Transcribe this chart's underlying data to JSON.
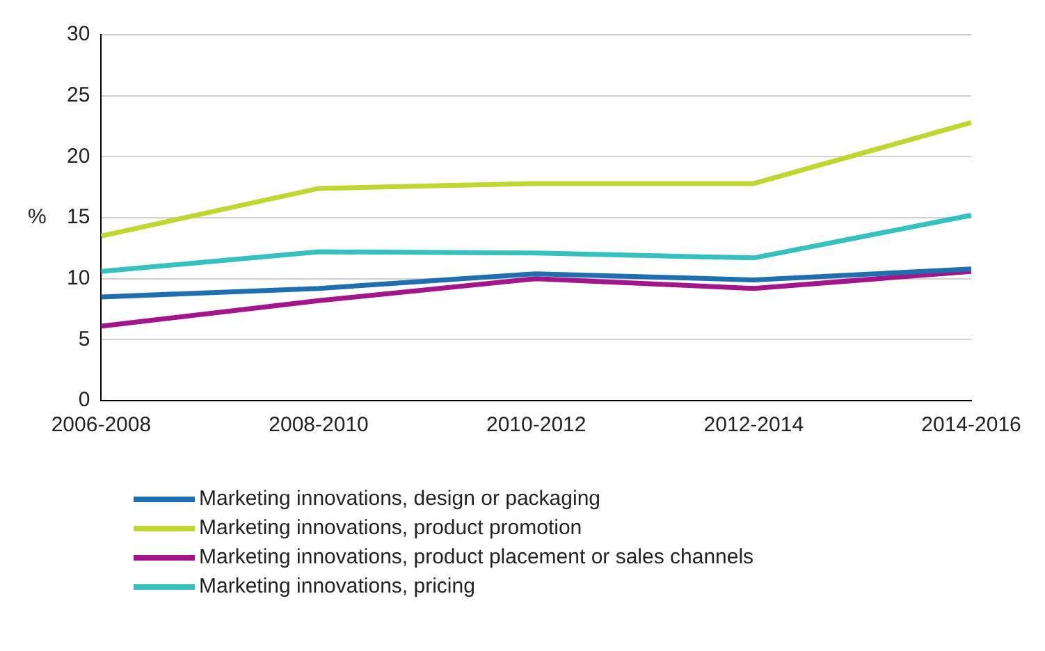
{
  "chart_data": {
    "type": "line",
    "ylabel": "%",
    "categories": [
      "2006-2008",
      "2008-2010",
      "2010-2012",
      "2012-2014",
      "2014-2016"
    ],
    "series": [
      {
        "name": "Marketing innovations, design or packaging",
        "color": "#1f6fb0",
        "values": [
          8.5,
          9.2,
          10.4,
          9.9,
          10.8
        ]
      },
      {
        "name": "Marketing innovations, product promotion",
        "color": "#bfd730",
        "values": [
          13.5,
          17.4,
          17.8,
          17.8,
          22.8
        ]
      },
      {
        "name": "Marketing innovations, product placement or sales channels",
        "color": "#a3168b",
        "values": [
          6.1,
          8.2,
          10.0,
          9.2,
          10.6
        ]
      },
      {
        "name": "Marketing innovations, pricing",
        "color": "#36c0c0",
        "values": [
          10.6,
          12.2,
          12.1,
          11.7,
          15.2
        ]
      }
    ],
    "ylim": [
      0,
      30
    ],
    "yticks": [
      0,
      5,
      10,
      15,
      20,
      25,
      30
    ],
    "grid": "y",
    "legend": "bottom",
    "marker": "none",
    "line_style": "solid"
  }
}
